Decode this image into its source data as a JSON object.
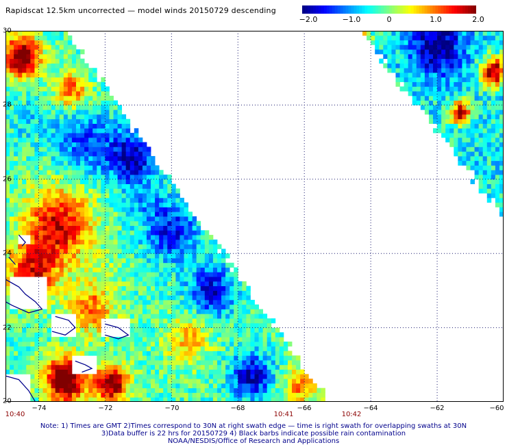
{
  "title": "Rapidscat 12.5km uncorrected — model winds 20150729 descending",
  "colorbar": {
    "ticks": [
      "−2.0",
      "−1.0",
      "0",
      "1.0",
      "2.0"
    ],
    "range": [
      -2.0,
      2.0
    ],
    "colors": [
      "#000080",
      "#0000ff",
      "#0080ff",
      "#00ffff",
      "#80ff80",
      "#ffff00",
      "#ff8000",
      "#ff0000",
      "#800000"
    ]
  },
  "map": {
    "lat_range": [
      20,
      30
    ],
    "lon_range": [
      -75,
      -60
    ],
    "lat_labels": [
      "30",
      "28",
      "26",
      "24",
      "22",
      "20"
    ],
    "lon_labels": [
      "−74",
      "−72",
      "−70",
      "−68",
      "−66",
      "−64",
      "−62",
      "−60"
    ],
    "time_labels": [
      "10:40",
      "10:41",
      "10:42"
    ],
    "grid": "dotted",
    "coast_color": "#00008b"
  },
  "notes": {
    "line1": "Note: 1) Times are GMT 2)Times correspond to 30N at right swath edge — time is right swath for overlapping swaths at 30N",
    "line2": "3)Data buffer is 22 hrs for 20150729 4) Black barbs indicate possible rain contamination",
    "line3": "NOAA/NESDIS/Office of Research and Applications"
  }
}
